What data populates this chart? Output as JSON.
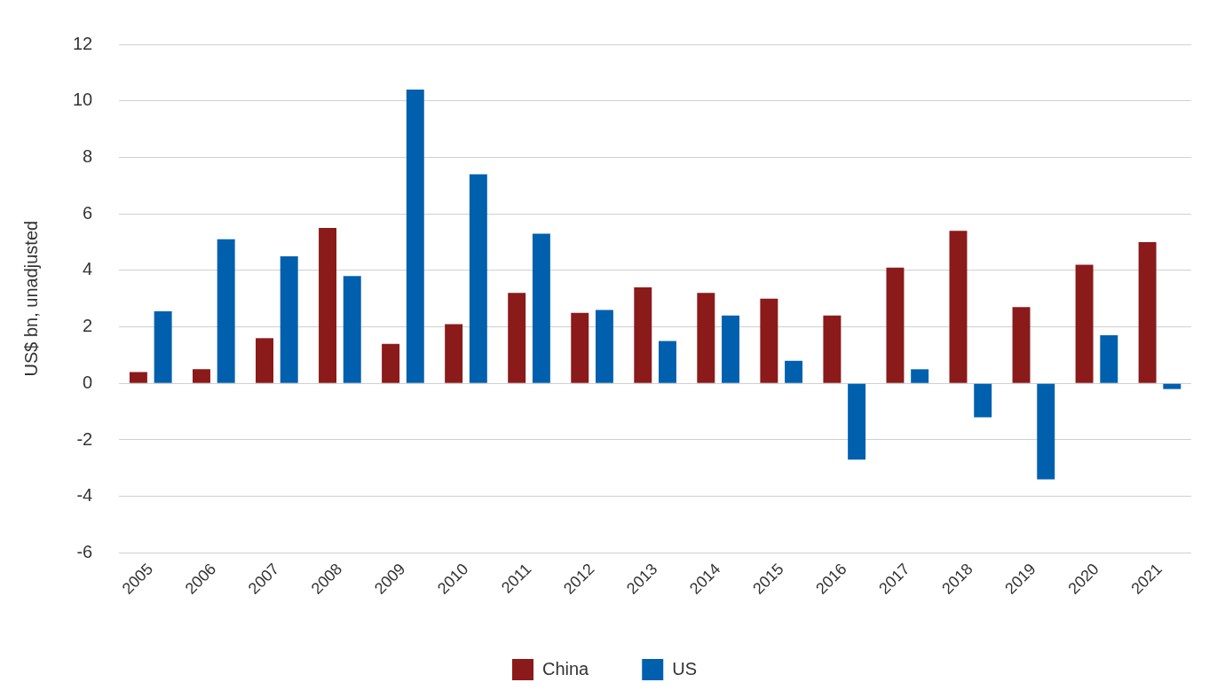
{
  "chart_data": {
    "type": "bar",
    "ylabel": "US$ bn, unadjusted",
    "categories": [
      "2005",
      "2006",
      "2007",
      "2008",
      "2009",
      "2010",
      "2011",
      "2012",
      "2013",
      "2014",
      "2015",
      "2016",
      "2017",
      "2018",
      "2019",
      "2020",
      "2021"
    ],
    "series": [
      {
        "name": "China",
        "color": "#8b1a1a",
        "values": [
          0.4,
          0.5,
          1.6,
          5.5,
          1.4,
          2.1,
          3.2,
          2.5,
          3.4,
          3.2,
          3.0,
          2.4,
          4.1,
          5.4,
          2.7,
          4.2,
          5.0
        ]
      },
      {
        "name": "US",
        "color": "#0060ae",
        "values": [
          2.55,
          5.1,
          4.5,
          3.8,
          10.4,
          7.4,
          5.3,
          2.6,
          1.5,
          2.4,
          0.8,
          -2.7,
          0.5,
          -1.2,
          -3.4,
          1.7,
          -0.2
        ]
      }
    ],
    "ylim": [
      -6,
      12
    ],
    "yticks": [
      -6,
      -4,
      -2,
      0,
      2,
      4,
      6,
      8,
      10,
      12
    ],
    "grid": "y",
    "legend": "bottom"
  }
}
